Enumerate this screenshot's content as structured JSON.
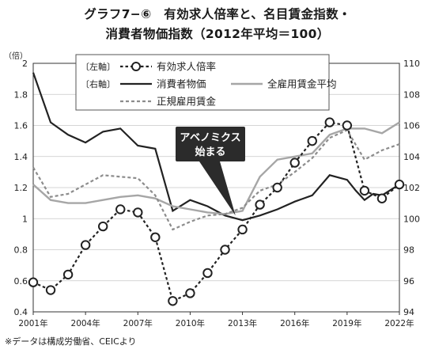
{
  "title_line1": "グラフ7−⑥　有効求人倍率と、名目賃金指数・",
  "title_line2": "消費者物価指数（2012年平均＝100）",
  "source": "※データは構成労働省、CEICより",
  "chart_data": {
    "type": "line",
    "left_axis_unit": "（倍）",
    "left_ylim": [
      0.4,
      2.0
    ],
    "left_ticks": [
      "0.4",
      "0.6",
      "0.8",
      "1",
      "1.2",
      "1.4",
      "1.6",
      "1.8",
      "2"
    ],
    "right_ylim": [
      94,
      110
    ],
    "right_ticks": [
      "94",
      "96",
      "98",
      "100",
      "102",
      "104",
      "106",
      "108",
      "110"
    ],
    "xlim": [
      2001,
      2022
    ],
    "x_ticks": [
      "2001年",
      "2004年",
      "2007年",
      "2010年",
      "2013年",
      "2016年",
      "2019年",
      "2022年"
    ],
    "grid": "horizontal",
    "legend_position": "top-left",
    "legend": {
      "left_axis_tag": "〔左軸〕",
      "right_axis_tag": "〔右軸〕",
      "left_items": [
        "有効求人倍率"
      ],
      "right_items": [
        "消費者物価",
        "全雇用賃金平均",
        "正規雇用賃金"
      ]
    },
    "annotation": {
      "lines": [
        "アベノミクス",
        "始まる"
      ],
      "x": 2012.6,
      "y_right": 100.2
    },
    "series": [
      {
        "name": "有効求人倍率",
        "axis": "left",
        "style": "dotted-circles",
        "color": "#222222",
        "x": [
          2001,
          2002,
          2003,
          2004,
          2005,
          2006,
          2007,
          2008,
          2009,
          2010,
          2011,
          2012,
          2013,
          2014,
          2015,
          2016,
          2017,
          2018,
          2019,
          2020,
          2021,
          2022
        ],
        "y": [
          0.59,
          0.54,
          0.64,
          0.83,
          0.95,
          1.06,
          1.04,
          0.88,
          0.47,
          0.52,
          0.65,
          0.8,
          0.93,
          1.09,
          1.2,
          1.36,
          1.5,
          1.62,
          1.6,
          1.18,
          1.13,
          1.22
        ]
      },
      {
        "name": "消費者物価",
        "axis": "right",
        "style": "solid",
        "color": "#222222",
        "x": [
          2001,
          2002,
          2003,
          2004,
          2005,
          2006,
          2007,
          2008,
          2009,
          2010,
          2011,
          2012,
          2013,
          2014,
          2015,
          2016,
          2017,
          2018,
          2019,
          2019.5,
          2020,
          2020.5,
          2021,
          2022
        ],
        "y": [
          109.4,
          106.2,
          105.4,
          104.9,
          105.6,
          105.8,
          104.7,
          104.5,
          100.5,
          101.2,
          100.8,
          100.2,
          99.9,
          100.2,
          100.6,
          101.1,
          101.5,
          102.8,
          102.5,
          101.8,
          101.2,
          101.6,
          101.5,
          102.2
        ]
      },
      {
        "name": "全雇用賃金平均",
        "axis": "right",
        "style": "solid",
        "color": "#a6a6a6",
        "x": [
          2001,
          2002,
          2003,
          2004,
          2005,
          2006,
          2007,
          2008,
          2009,
          2010,
          2011,
          2012,
          2013,
          2014,
          2015,
          2016,
          2017,
          2018,
          2019,
          2020,
          2021,
          2022
        ],
        "y": [
          102.2,
          101.2,
          101.0,
          101.0,
          101.2,
          101.4,
          101.5,
          101.3,
          100.8,
          100.6,
          100.4,
          100.3,
          100.5,
          102.7,
          103.8,
          104.0,
          104.2,
          105.4,
          105.8,
          105.8,
          105.5,
          106.2
        ]
      },
      {
        "name": "正規雇用賃金",
        "axis": "right",
        "style": "dashed",
        "color": "#8c8c8c",
        "x": [
          2001,
          2002,
          2003,
          2004,
          2005,
          2006,
          2007,
          2008,
          2009,
          2010,
          2011,
          2012,
          2013,
          2014,
          2015,
          2016,
          2017,
          2018,
          2019,
          2020,
          2021,
          2022
        ],
        "y": [
          103.3,
          101.4,
          101.6,
          102.2,
          102.8,
          102.7,
          102.6,
          101.5,
          99.3,
          99.8,
          100.2,
          100.3,
          100.7,
          101.8,
          102.2,
          103.0,
          103.9,
          105.2,
          105.7,
          103.8,
          104.4,
          104.8
        ]
      }
    ]
  }
}
